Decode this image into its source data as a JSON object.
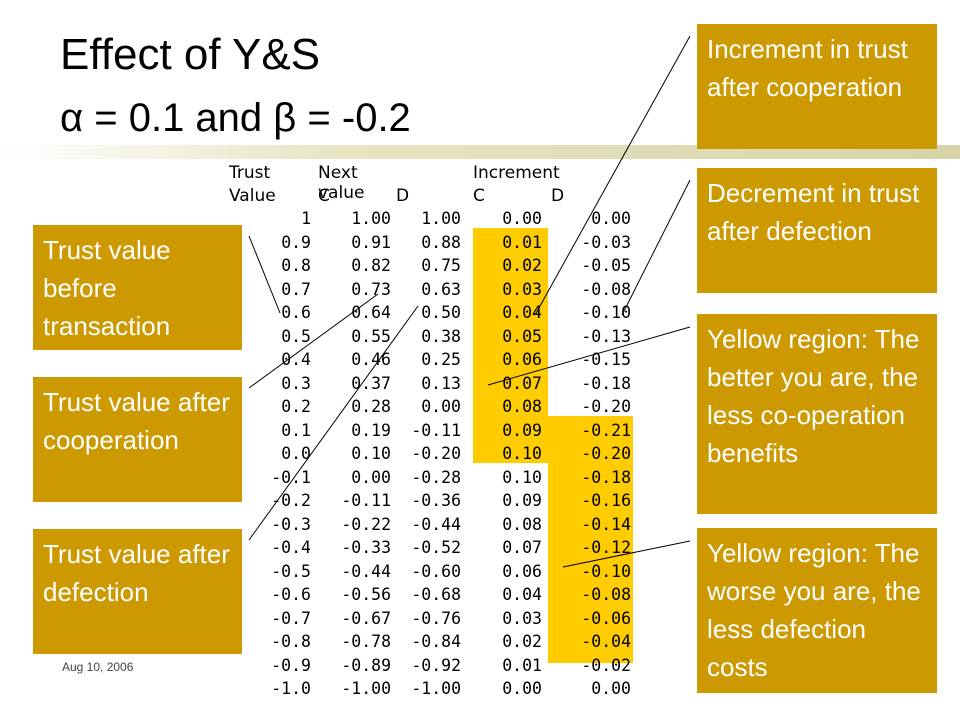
{
  "title": "Effect of Y&S",
  "subtitle": "α = 0.1 and β = -0.2",
  "footer_date": "Aug 10, 2006",
  "colors": {
    "callout_bg": "#cc9900",
    "highlight": "#ffcc00",
    "callout_text": "#ffffff"
  },
  "table": {
    "headers": {
      "trust": "Trust",
      "value": "Value",
      "next_value": "Next value",
      "increment": "Increment",
      "c1": "C",
      "d1": "D",
      "c2": "C",
      "d2": "D"
    },
    "rows": [
      [
        "1",
        "1.00",
        "1.00",
        "0.00",
        "0.00"
      ],
      [
        "0.9",
        "0.91",
        "0.88",
        "0.01",
        "-0.03"
      ],
      [
        "0.8",
        "0.82",
        "0.75",
        "0.02",
        "-0.05"
      ],
      [
        "0.7",
        "0.73",
        "0.63",
        "0.03",
        "-0.08"
      ],
      [
        "0.6",
        "0.64",
        "0.50",
        "0.04",
        "-0.10"
      ],
      [
        "0.5",
        "0.55",
        "0.38",
        "0.05",
        "-0.13"
      ],
      [
        "0.4",
        "0.46",
        "0.25",
        "0.06",
        "-0.15"
      ],
      [
        "0.3",
        "0.37",
        "0.13",
        "0.07",
        "-0.18"
      ],
      [
        "0.2",
        "0.28",
        "0.00",
        "0.08",
        "-0.20"
      ],
      [
        "0.1",
        "0.19",
        "-0.11",
        "0.09",
        "-0.21"
      ],
      [
        "0.0",
        "0.10",
        "-0.20",
        "0.10",
        "-0.20"
      ],
      [
        "-0.1",
        "0.00",
        "-0.28",
        "0.10",
        "-0.18"
      ],
      [
        "-0.2",
        "-0.11",
        "-0.36",
        "0.09",
        "-0.16"
      ],
      [
        "-0.3",
        "-0.22",
        "-0.44",
        "0.08",
        "-0.14"
      ],
      [
        "-0.4",
        "-0.33",
        "-0.52",
        "0.07",
        "-0.12"
      ],
      [
        "-0.5",
        "-0.44",
        "-0.60",
        "0.06",
        "-0.10"
      ],
      [
        "-0.6",
        "-0.56",
        "-0.68",
        "0.04",
        "-0.08"
      ],
      [
        "-0.7",
        "-0.67",
        "-0.76",
        "0.03",
        "-0.06"
      ],
      [
        "-0.8",
        "-0.78",
        "-0.84",
        "0.02",
        "-0.04"
      ],
      [
        "-0.9",
        "-0.89",
        "-0.92",
        "0.01",
        "-0.02"
      ],
      [
        "-1.0",
        "-1.00",
        "-1.00",
        "0.00",
        "0.00"
      ]
    ]
  },
  "callouts": {
    "trust_before": "Trust value before transaction",
    "trust_after_coop": "Trust value after cooperation",
    "trust_after_defect": "Trust value after defection",
    "increment": "Increment in trust after cooperation",
    "decrement": "Decrement in trust after defection",
    "yellow_better": "Yellow region: The better you are, the less co-operation benefits",
    "yellow_worse": "Yellow region: The worse you are, the less defection costs"
  }
}
